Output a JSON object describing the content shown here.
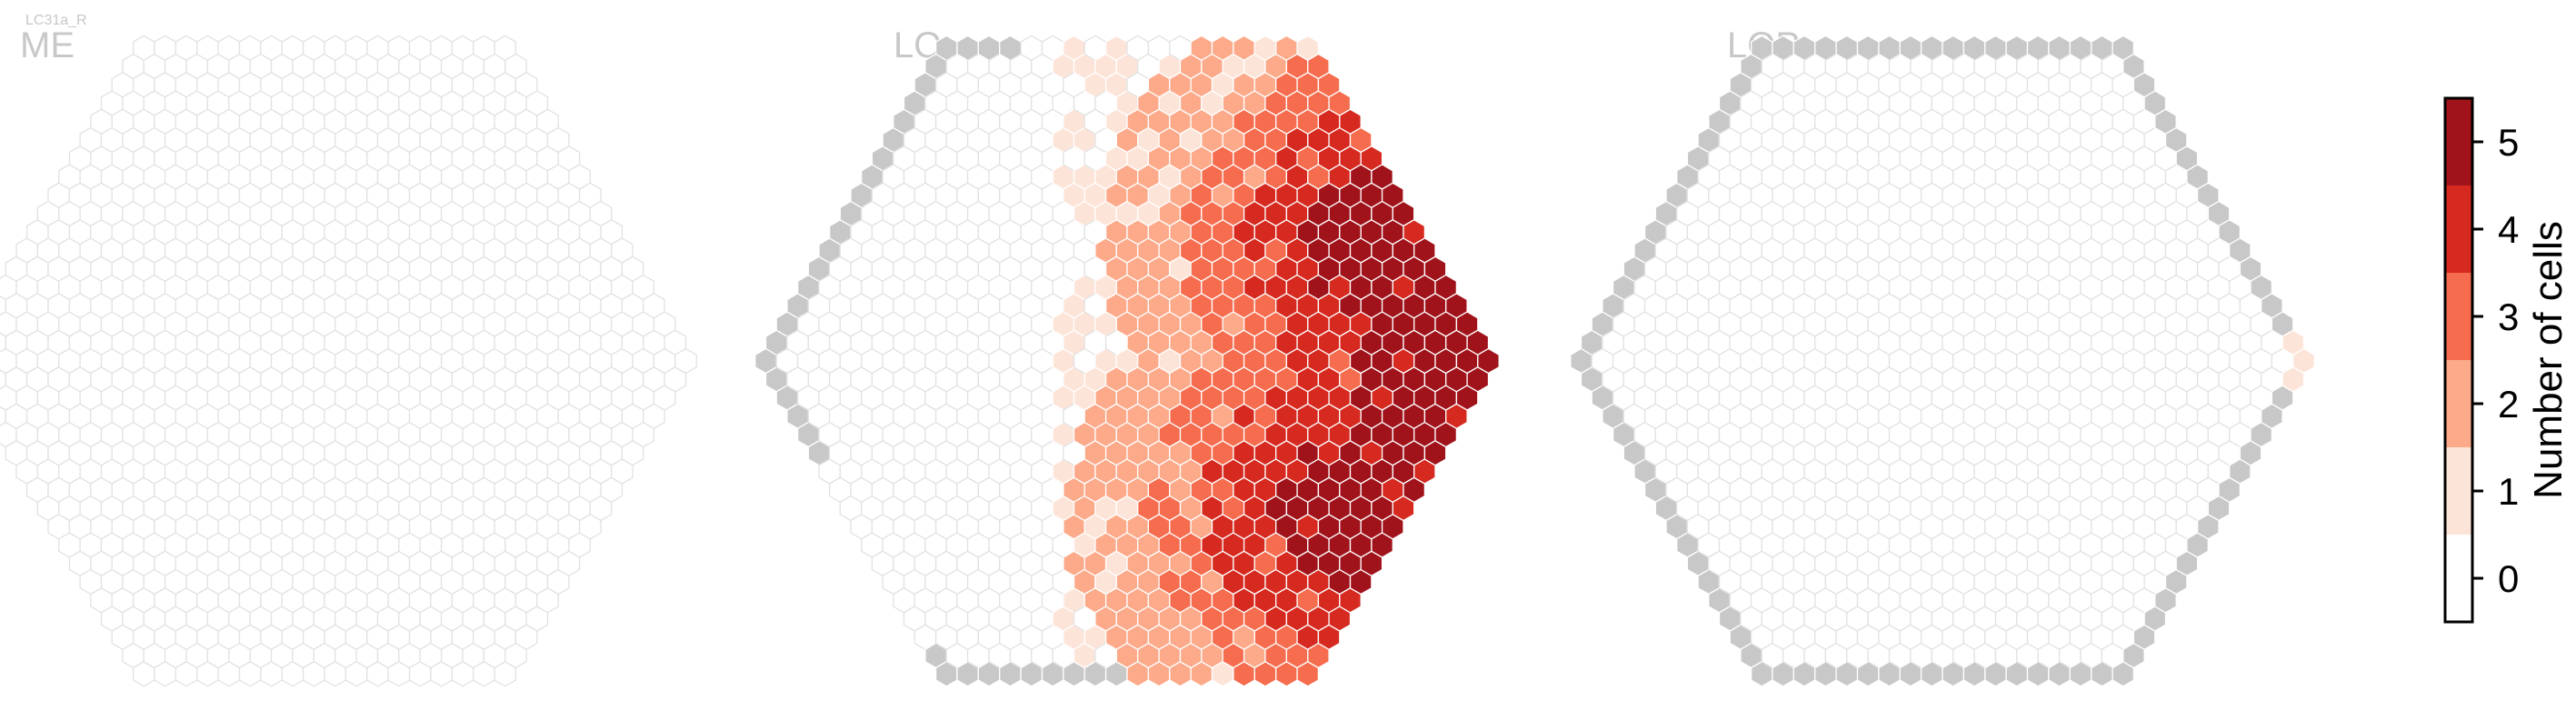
{
  "figure_tag": "LC31a_R",
  "chart_data": {
    "type": "heatmap",
    "subtype": "hexagonal",
    "title": "",
    "panels": [
      {
        "name": "ME"
      },
      {
        "name": "LO"
      },
      {
        "name": "LOP"
      }
    ],
    "colorbar": {
      "label": "Number of cells",
      "range": [
        -0.5,
        5.5
      ],
      "ticks": [
        "0",
        "1",
        "2",
        "3",
        "4",
        "5"
      ],
      "colors": [
        "#ffffff",
        "#fde4d8",
        "#fcaa8a",
        "#f66c4e",
        "#d6291f",
        "#a0131b"
      ],
      "edge_color": "#000000"
    },
    "colors": {
      "empty_hex_edge": "#e2e2e2",
      "grey_hex": "#c8c8c8",
      "panel_label": "#c8c8c8",
      "hex_border": "#ffffff"
    }
  }
}
